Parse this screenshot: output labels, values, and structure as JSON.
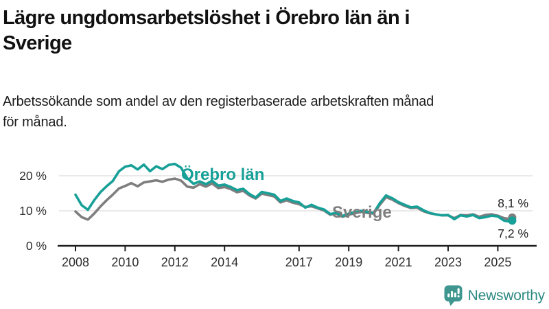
{
  "header": {
    "title_lines": [
      "Lägre ungdomsarbetslöshet i Örebro län än i",
      "Sverige"
    ],
    "subtitle_lines": [
      "Arbetssökande som andel av den registerbaserade arbetskraften månad",
      "för månad."
    ]
  },
  "branding": {
    "logo_text": "Newsworthy",
    "logo_icon": "bar-chart-speech-bubble-icon",
    "logo_color": "#2f8a84",
    "icon_color": "#3f968f"
  },
  "chart_data": {
    "type": "line",
    "title": "Lägre ungdomsarbetslöshet i Örebro län än i Sverige",
    "subtitle": "Arbetssökande som andel av den registerbaserade arbetskraften månad för månad.",
    "unit": "%",
    "grid": "horizontal",
    "x_axis": {
      "ticks": [
        2008,
        2010,
        2012,
        2014,
        2017,
        2019,
        2021,
        2023,
        2025
      ],
      "range": [
        2007.6,
        2026.3
      ]
    },
    "y_axis": {
      "ticks": [
        0,
        10,
        20
      ],
      "tick_labels": [
        "0 %",
        "10 %",
        "20 %"
      ],
      "range": [
        0,
        26
      ]
    },
    "x": [
      2008,
      2008.25,
      2008.5,
      2008.75,
      2009,
      2009.25,
      2009.5,
      2009.75,
      2010,
      2010.25,
      2010.5,
      2010.75,
      2011,
      2011.25,
      2011.5,
      2011.75,
      2012,
      2012.25,
      2012.5,
      2012.75,
      2013,
      2013.25,
      2013.5,
      2013.75,
      2014,
      2014.25,
      2014.5,
      2014.75,
      2015,
      2015.25,
      2015.5,
      2015.75,
      2016,
      2016.25,
      2016.5,
      2016.75,
      2017,
      2017.25,
      2017.5,
      2017.75,
      2018,
      2018.25,
      2018.5,
      2018.75,
      2019,
      2019.25,
      2019.5,
      2019.75,
      2020,
      2020.25,
      2020.5,
      2020.75,
      2021,
      2021.25,
      2021.5,
      2021.75,
      2022,
      2022.25,
      2022.5,
      2022.75,
      2023,
      2023.25,
      2023.5,
      2023.75,
      2024,
      2024.25,
      2024.5,
      2024.75,
      2025,
      2025.25,
      2025.5,
      2025.58
    ],
    "series": [
      {
        "name": "Örebro län",
        "color": "#17a098",
        "end_label": "7,2 %",
        "end_value": 7.2,
        "values": [
          14.6,
          11.6,
          10.3,
          13.0,
          15.3,
          17.0,
          18.5,
          21.3,
          22.6,
          23.0,
          21.8,
          23.2,
          21.3,
          22.7,
          21.9,
          23.1,
          23.4,
          22.3,
          19.3,
          17.7,
          18.4,
          17.6,
          18.6,
          17.2,
          17.5,
          16.8,
          15.9,
          16.3,
          14.8,
          13.8,
          15.4,
          15.0,
          14.6,
          12.8,
          13.5,
          12.8,
          12.4,
          10.9,
          11.7,
          10.9,
          10.4,
          9.1,
          9.4,
          8.5,
          9.2,
          9.6,
          10.0,
          9.7,
          9.4,
          12.2,
          14.4,
          13.6,
          12.5,
          11.7,
          11.0,
          11.2,
          10.2,
          9.4,
          9.0,
          8.7,
          8.8,
          7.6,
          8.7,
          8.4,
          8.8,
          7.9,
          8.2,
          8.6,
          8.4,
          7.2,
          6.9,
          7.2
        ]
      },
      {
        "name": "Sverige",
        "color": "#7e7e7e",
        "end_label": "8,1 %",
        "end_value": 8.1,
        "values": [
          9.8,
          8.2,
          7.5,
          9.2,
          11.2,
          13.0,
          14.6,
          16.4,
          17.1,
          17.9,
          17.0,
          18.1,
          18.4,
          18.7,
          18.3,
          18.9,
          19.2,
          18.6,
          16.9,
          16.6,
          17.6,
          16.9,
          17.8,
          16.5,
          16.8,
          16.2,
          15.3,
          15.7,
          14.4,
          13.5,
          14.9,
          14.5,
          14.1,
          12.4,
          13.0,
          12.3,
          11.9,
          11.1,
          11.3,
          10.7,
          10.1,
          8.9,
          9.2,
          8.3,
          8.9,
          9.3,
          9.7,
          9.4,
          9.2,
          11.7,
          13.9,
          13.2,
          12.2,
          11.4,
          10.8,
          10.9,
          9.9,
          9.3,
          9.0,
          8.7,
          8.7,
          7.9,
          8.8,
          8.7,
          9.0,
          8.3,
          8.8,
          9.0,
          8.6,
          7.9,
          7.6,
          8.1
        ]
      }
    ]
  }
}
